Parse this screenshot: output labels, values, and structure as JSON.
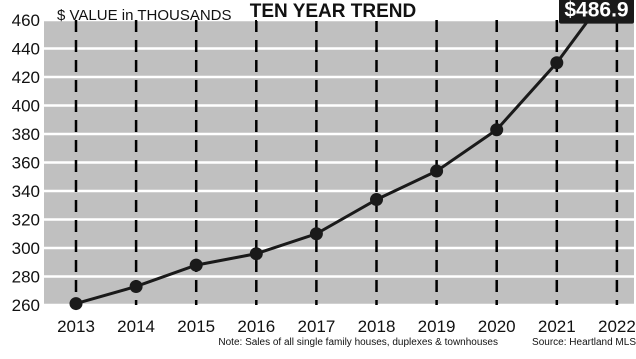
{
  "chart_data": {
    "type": "line",
    "title": "TEN YEAR TREND",
    "ylabel": "$ VALUE in THOUSANDS",
    "categories": [
      "2013",
      "2014",
      "2015",
      "2016",
      "2017",
      "2018",
      "2019",
      "2020",
      "2021",
      "2022"
    ],
    "series": [
      {
        "values": [
          261,
          273,
          288,
          296,
          310,
          334,
          354,
          383,
          430,
          486.9
        ]
      }
    ],
    "ylim": [
      260,
      460
    ],
    "yticks": [
      260,
      280,
      300,
      320,
      340,
      360,
      380,
      400,
      420,
      440,
      460
    ],
    "grid": true,
    "callout": "$486.9",
    "note": "Note: Sales of all single family houses, duplexes  & townhouses",
    "source": "Source: Heartland MLS"
  },
  "colors": {
    "plot_background": "#c0c0c0",
    "grid_horizontal": "#ffffff",
    "grid_vertical": "#000000",
    "line": "#1a1a1a",
    "callout_background": "#1a1a1a",
    "callout_text": "#ffffff"
  }
}
